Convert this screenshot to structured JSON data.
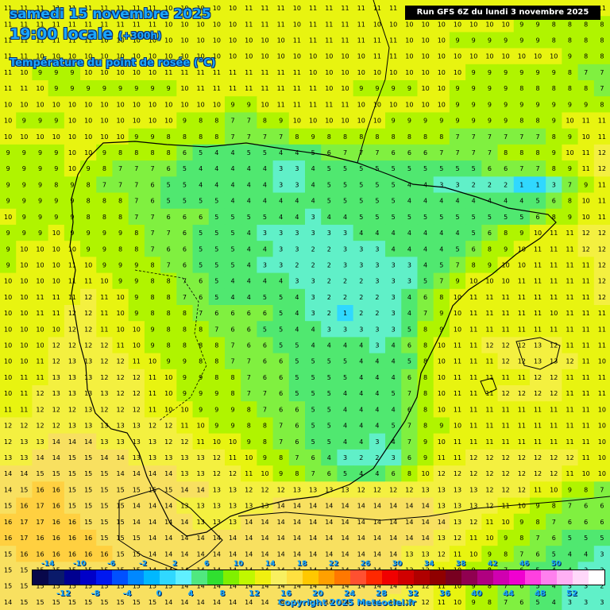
{
  "header": {
    "date": "samedi 15 novembre 2025",
    "time": "19:00 locale",
    "offset": "(+300h)",
    "variable": "Température du point de rosée (°C)"
  },
  "run_label": "Run GFS 6Z du lundi 3 novembre 2025",
  "copyright": "Copyright 2025 Meteociel.fr",
  "legend": {
    "top_labels": [
      "-14",
      "-10",
      "-6",
      "-2",
      "2",
      "6",
      "10",
      "14",
      "18",
      "22",
      "26",
      "30",
      "34",
      "38",
      "42",
      "46",
      "50"
    ],
    "bottom_labels": [
      "-12",
      "-8",
      "-4",
      "0",
      "4",
      "8",
      "12",
      "16",
      "20",
      "24",
      "28",
      "32",
      "36",
      "40",
      "44",
      "48",
      "52"
    ],
    "colors": [
      "#08084a",
      "#0a1a6a",
      "#000090",
      "#0000c8",
      "#0018f0",
      "#0050ff",
      "#0088ff",
      "#00b8ff",
      "#30d8ff",
      "#60f0ff",
      "#50e880",
      "#30e030",
      "#80f000",
      "#c0f800",
      "#f0f010",
      "#f8f060",
      "#ffe040",
      "#ffc800",
      "#ffa000",
      "#ff7800",
      "#ff5030",
      "#ff2800",
      "#f00000",
      "#d00000",
      "#b00000",
      "#900000",
      "#780020",
      "#900050",
      "#b00080",
      "#d000b0",
      "#f000d0",
      "#ff40e0",
      "#ff80ee",
      "#ffb0f4",
      "#ffd8fa",
      "#ffffff"
    ]
  },
  "map": {
    "region": "Péninsule Ibérique",
    "colors": {
      "sea": "#f0f020",
      "ocean_warm": "#f8e060",
      "land_green": "#50e870",
      "land_mid": "#80f040",
      "land_light": "#c0f800",
      "cold": "#30d8ff",
      "border": "#000000"
    },
    "value_grid": [
      [
        11,
        11,
        11,
        11,
        11,
        11,
        11,
        11,
        11,
        11,
        10,
        10,
        10,
        10,
        10,
        11,
        11,
        11,
        10,
        11,
        11,
        11,
        11,
        11,
        11,
        11,
        11,
        11,
        11,
        11,
        11,
        11,
        11,
        11,
        11,
        11,
        11,
        11
      ],
      [
        11,
        11,
        11,
        11,
        11,
        11,
        11,
        11,
        11,
        11,
        10,
        10,
        10,
        10,
        10,
        11,
        11,
        11,
        10,
        11,
        11,
        11,
        11,
        10,
        10,
        10,
        10,
        10,
        10,
        10,
        10,
        10,
        9,
        9,
        8,
        8,
        8,
        8
      ],
      [
        11,
        11,
        11,
        11,
        11,
        11,
        10,
        10,
        10,
        10,
        10,
        10,
        10,
        10,
        10,
        10,
        10,
        10,
        11,
        11,
        11,
        11,
        11,
        11,
        11,
        10,
        10,
        10,
        9,
        9,
        9,
        9,
        9,
        9,
        8,
        8,
        8,
        8
      ],
      [
        11,
        11,
        10,
        10,
        10,
        10,
        10,
        10,
        10,
        10,
        10,
        10,
        10,
        10,
        10,
        10,
        10,
        10,
        10,
        10,
        10,
        10,
        10,
        11,
        11,
        10,
        10,
        10,
        10,
        10,
        10,
        10,
        10,
        10,
        10,
        9,
        8,
        8
      ],
      [
        11,
        10,
        9,
        9,
        9,
        10,
        10,
        10,
        10,
        10,
        11,
        11,
        11,
        11,
        11,
        11,
        11,
        11,
        11,
        10,
        10,
        10,
        10,
        10,
        10,
        10,
        10,
        10,
        10,
        9,
        9,
        9,
        9,
        9,
        9,
        8,
        7,
        7
      ],
      [
        11,
        11,
        10,
        9,
        9,
        9,
        9,
        9,
        9,
        9,
        9,
        10,
        11,
        11,
        11,
        11,
        11,
        11,
        11,
        11,
        10,
        10,
        9,
        9,
        9,
        9,
        10,
        10,
        9,
        9,
        9,
        9,
        8,
        8,
        8,
        8,
        8,
        7
      ],
      [
        10,
        10,
        10,
        10,
        10,
        10,
        10,
        10,
        10,
        10,
        10,
        10,
        10,
        10,
        9,
        9,
        10,
        11,
        11,
        11,
        11,
        11,
        10,
        10,
        10,
        10,
        10,
        10,
        9,
        9,
        9,
        9,
        9,
        9,
        9,
        9,
        9,
        8
      ],
      [
        10,
        9,
        9,
        9,
        10,
        10,
        10,
        10,
        10,
        10,
        10,
        9,
        8,
        8,
        7,
        7,
        8,
        9,
        10,
        10,
        10,
        10,
        10,
        10,
        9,
        9,
        9,
        9,
        9,
        9,
        9,
        9,
        8,
        8,
        9,
        10,
        11,
        11
      ],
      [
        10,
        10,
        10,
        10,
        10,
        10,
        10,
        10,
        9,
        9,
        8,
        8,
        8,
        8,
        7,
        7,
        7,
        7,
        8,
        9,
        8,
        8,
        8,
        8,
        8,
        8,
        8,
        8,
        7,
        7,
        7,
        7,
        7,
        7,
        8,
        9,
        10,
        11
      ],
      [
        9,
        9,
        9,
        9,
        10,
        10,
        9,
        8,
        8,
        8,
        8,
        6,
        5,
        4,
        4,
        5,
        5,
        4,
        4,
        5,
        6,
        7,
        7,
        7,
        6,
        6,
        6,
        7,
        7,
        7,
        7,
        8,
        8,
        8,
        9,
        10,
        11,
        12
      ],
      [
        9,
        9,
        9,
        9,
        10,
        9,
        8,
        7,
        7,
        7,
        6,
        5,
        4,
        4,
        4,
        4,
        4,
        3,
        3,
        4,
        5,
        5,
        5,
        5,
        5,
        5,
        5,
        5,
        5,
        5,
        6,
        6,
        7,
        7,
        8,
        9,
        11,
        12
      ],
      [
        9,
        9,
        9,
        8,
        9,
        8,
        7,
        7,
        7,
        6,
        5,
        5,
        4,
        4,
        4,
        4,
        4,
        3,
        3,
        4,
        5,
        5,
        5,
        5,
        5,
        4,
        4,
        3,
        3,
        2,
        2,
        2,
        1,
        1,
        3,
        7,
        9,
        11
      ],
      [
        9,
        9,
        9,
        9,
        9,
        8,
        8,
        8,
        7,
        6,
        5,
        5,
        5,
        5,
        4,
        4,
        4,
        4,
        4,
        4,
        5,
        5,
        5,
        5,
        5,
        4,
        4,
        4,
        4,
        4,
        4,
        4,
        4,
        5,
        6,
        8,
        10,
        11
      ],
      [
        10,
        9,
        9,
        9,
        9,
        8,
        8,
        8,
        7,
        7,
        6,
        6,
        6,
        5,
        5,
        5,
        5,
        4,
        4,
        3,
        4,
        4,
        5,
        5,
        5,
        5,
        5,
        5,
        5,
        5,
        5,
        5,
        5,
        6,
        8,
        9,
        10,
        11
      ],
      [
        9,
        9,
        9,
        10,
        9,
        9,
        9,
        9,
        8,
        7,
        7,
        6,
        5,
        5,
        5,
        4,
        3,
        3,
        3,
        3,
        3,
        3,
        4,
        4,
        4,
        4,
        4,
        4,
        4,
        5,
        6,
        8,
        9,
        10,
        11,
        11,
        12,
        12
      ],
      [
        9,
        10,
        10,
        10,
        10,
        9,
        9,
        8,
        8,
        7,
        6,
        6,
        5,
        5,
        5,
        4,
        4,
        3,
        3,
        2,
        2,
        3,
        3,
        3,
        4,
        4,
        4,
        4,
        5,
        6,
        8,
        9,
        10,
        11,
        11,
        11,
        12,
        12
      ],
      [
        9,
        10,
        10,
        10,
        11,
        10,
        9,
        9,
        9,
        8,
        7,
        6,
        5,
        5,
        5,
        4,
        3,
        3,
        2,
        2,
        2,
        3,
        3,
        3,
        3,
        3,
        4,
        5,
        7,
        8,
        9,
        10,
        10,
        11,
        11,
        11,
        11,
        12
      ],
      [
        10,
        10,
        10,
        10,
        11,
        11,
        10,
        9,
        9,
        8,
        8,
        7,
        6,
        5,
        4,
        4,
        4,
        4,
        3,
        3,
        2,
        2,
        2,
        3,
        3,
        3,
        5,
        7,
        9,
        10,
        10,
        10,
        11,
        11,
        11,
        11,
        11,
        12
      ],
      [
        10,
        10,
        11,
        11,
        11,
        12,
        11,
        10,
        9,
        8,
        8,
        7,
        6,
        5,
        4,
        4,
        5,
        5,
        4,
        3,
        2,
        2,
        2,
        2,
        3,
        4,
        6,
        8,
        10,
        11,
        11,
        11,
        11,
        11,
        11,
        11,
        11,
        12
      ],
      [
        10,
        10,
        11,
        11,
        12,
        12,
        11,
        10,
        9,
        8,
        8,
        8,
        7,
        6,
        6,
        6,
        6,
        5,
        4,
        3,
        2,
        1,
        2,
        2,
        3,
        4,
        7,
        9,
        10,
        11,
        11,
        11,
        11,
        11,
        10,
        11,
        11,
        11
      ],
      [
        10,
        10,
        10,
        10,
        12,
        12,
        11,
        10,
        10,
        9,
        8,
        8,
        8,
        7,
        6,
        6,
        5,
        5,
        4,
        4,
        3,
        3,
        3,
        3,
        3,
        5,
        8,
        9,
        10,
        11,
        11,
        11,
        11,
        11,
        11,
        11,
        11,
        11
      ],
      [
        10,
        10,
        10,
        12,
        12,
        12,
        12,
        11,
        10,
        9,
        8,
        8,
        8,
        8,
        7,
        6,
        6,
        5,
        5,
        4,
        4,
        4,
        4,
        3,
        4,
        6,
        8,
        10,
        11,
        11,
        12,
        12,
        12,
        13,
        12,
        11,
        11,
        11
      ],
      [
        10,
        10,
        11,
        12,
        13,
        13,
        12,
        12,
        11,
        10,
        9,
        9,
        8,
        8,
        7,
        7,
        6,
        6,
        5,
        5,
        5,
        5,
        4,
        4,
        4,
        5,
        8,
        10,
        11,
        11,
        11,
        12,
        12,
        13,
        13,
        12,
        11,
        10
      ],
      [
        10,
        11,
        11,
        13,
        13,
        13,
        12,
        12,
        12,
        11,
        10,
        9,
        9,
        8,
        8,
        7,
        6,
        6,
        5,
        5,
        5,
        5,
        4,
        4,
        4,
        6,
        8,
        10,
        11,
        11,
        11,
        11,
        11,
        12,
        12,
        11,
        11,
        11
      ],
      [
        10,
        11,
        12,
        13,
        13,
        13,
        13,
        12,
        12,
        11,
        10,
        9,
        9,
        9,
        8,
        7,
        7,
        6,
        5,
        5,
        5,
        4,
        4,
        4,
        5,
        7,
        8,
        10,
        11,
        11,
        11,
        12,
        12,
        12,
        12,
        11,
        11,
        11
      ],
      [
        11,
        11,
        12,
        12,
        12,
        13,
        12,
        12,
        12,
        11,
        10,
        10,
        9,
        9,
        9,
        8,
        7,
        6,
        6,
        5,
        5,
        4,
        4,
        4,
        4,
        6,
        8,
        10,
        11,
        11,
        11,
        11,
        11,
        11,
        11,
        11,
        11,
        10
      ],
      [
        12,
        12,
        12,
        12,
        13,
        13,
        13,
        13,
        13,
        12,
        12,
        11,
        10,
        9,
        9,
        8,
        8,
        7,
        6,
        5,
        5,
        4,
        4,
        4,
        5,
        7,
        8,
        9,
        10,
        11,
        11,
        11,
        11,
        11,
        11,
        11,
        11,
        10
      ],
      [
        12,
        13,
        13,
        14,
        14,
        14,
        13,
        13,
        13,
        13,
        12,
        12,
        11,
        10,
        10,
        9,
        8,
        7,
        6,
        5,
        5,
        4,
        4,
        3,
        4,
        7,
        9,
        10,
        11,
        11,
        11,
        11,
        11,
        11,
        11,
        11,
        11,
        10
      ],
      [
        13,
        13,
        14,
        14,
        15,
        15,
        14,
        14,
        13,
        13,
        13,
        13,
        13,
        12,
        11,
        10,
        9,
        8,
        7,
        6,
        4,
        3,
        2,
        2,
        3,
        6,
        9,
        11,
        11,
        12,
        12,
        12,
        12,
        12,
        12,
        12,
        11,
        10
      ],
      [
        14,
        14,
        15,
        15,
        15,
        15,
        15,
        14,
        14,
        14,
        14,
        13,
        13,
        12,
        12,
        11,
        10,
        9,
        8,
        7,
        6,
        5,
        4,
        4,
        6,
        8,
        10,
        12,
        12,
        12,
        12,
        12,
        12,
        12,
        12,
        11,
        10,
        10
      ],
      [
        14,
        15,
        16,
        16,
        15,
        15,
        15,
        15,
        15,
        15,
        15,
        14,
        14,
        13,
        13,
        12,
        12,
        12,
        13,
        13,
        13,
        13,
        12,
        12,
        12,
        12,
        13,
        13,
        13,
        13,
        12,
        12,
        12,
        11,
        10,
        9,
        8,
        7
      ],
      [
        15,
        16,
        17,
        16,
        15,
        15,
        15,
        15,
        14,
        14,
        14,
        13,
        13,
        13,
        13,
        13,
        13,
        14,
        14,
        14,
        14,
        14,
        14,
        14,
        14,
        14,
        14,
        13,
        13,
        13,
        12,
        11,
        10,
        9,
        8,
        7,
        6,
        6
      ],
      [
        16,
        17,
        17,
        16,
        16,
        15,
        15,
        15,
        14,
        14,
        14,
        14,
        13,
        13,
        13,
        14,
        14,
        14,
        14,
        14,
        14,
        14,
        14,
        14,
        14,
        14,
        14,
        14,
        13,
        12,
        11,
        10,
        9,
        8,
        7,
        6,
        6,
        6
      ],
      [
        16,
        17,
        16,
        16,
        16,
        16,
        15,
        15,
        15,
        14,
        14,
        14,
        14,
        14,
        14,
        14,
        14,
        14,
        14,
        14,
        14,
        14,
        14,
        14,
        14,
        14,
        14,
        13,
        12,
        11,
        10,
        9,
        8,
        7,
        6,
        5,
        5,
        5
      ],
      [
        15,
        16,
        16,
        16,
        16,
        16,
        16,
        15,
        15,
        14,
        14,
        14,
        14,
        14,
        14,
        14,
        14,
        14,
        14,
        14,
        14,
        14,
        14,
        14,
        14,
        13,
        13,
        12,
        11,
        10,
        9,
        8,
        7,
        6,
        5,
        4,
        4,
        3
      ],
      [
        15,
        15,
        15,
        15,
        15,
        15,
        15,
        15,
        15,
        14,
        14,
        14,
        14,
        14,
        14,
        14,
        14,
        14,
        14,
        14,
        14,
        14,
        14,
        14,
        14,
        13,
        12,
        11,
        10,
        9,
        8,
        7,
        6,
        5,
        4,
        4,
        3,
        3
      ],
      [
        15,
        15,
        15,
        15,
        15,
        15,
        15,
        15,
        15,
        15,
        15,
        14,
        14,
        14,
        14,
        14,
        14,
        14,
        14,
        14,
        14,
        14,
        14,
        14,
        14,
        13,
        12,
        11,
        10,
        9,
        8,
        7,
        6,
        5,
        4,
        3,
        3,
        2
      ],
      [
        14,
        15,
        15,
        15,
        15,
        15,
        15,
        15,
        15,
        15,
        14,
        14,
        14,
        14,
        14,
        14,
        14,
        14,
        14,
        14,
        14,
        14,
        14,
        14,
        13,
        13,
        12,
        11,
        10,
        9,
        8,
        7,
        6,
        5,
        4,
        3,
        3,
        3
      ]
    ]
  }
}
